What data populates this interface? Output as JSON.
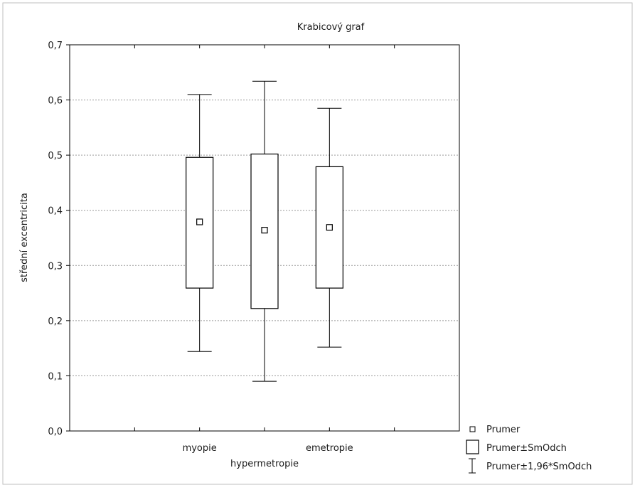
{
  "chart_data": {
    "type": "box",
    "title": "Krabicový graf",
    "xlabel": "",
    "ylabel": "střední excentricita",
    "ylim": [
      0.0,
      0.7
    ],
    "yticks": [
      "0,0",
      "0,1",
      "0,2",
      "0,3",
      "0,4",
      "0,5",
      "0,6",
      "0,7"
    ],
    "grid": true,
    "categories": [
      "myopie",
      "hypermetropie",
      "emetropie"
    ],
    "boxes": [
      {
        "category": "myopie",
        "mean": 0.379,
        "box_low": 0.259,
        "box_high": 0.496,
        "whisker_low": 0.144,
        "whisker_high": 0.61
      },
      {
        "category": "hypermetropie",
        "mean": 0.364,
        "box_low": 0.222,
        "box_high": 0.502,
        "whisker_low": 0.09,
        "whisker_high": 0.634
      },
      {
        "category": "emetropie",
        "mean": 0.369,
        "box_low": 0.259,
        "box_high": 0.479,
        "whisker_low": 0.152,
        "whisker_high": 0.585
      }
    ],
    "legend": {
      "position": "bottom-right",
      "items": [
        {
          "label": "Prumer",
          "symbol": "small-square"
        },
        {
          "label": "Prumer±SmOdch",
          "symbol": "box"
        },
        {
          "label": "Prumer±1,96*SmOdch",
          "symbol": "whisker"
        }
      ]
    }
  }
}
